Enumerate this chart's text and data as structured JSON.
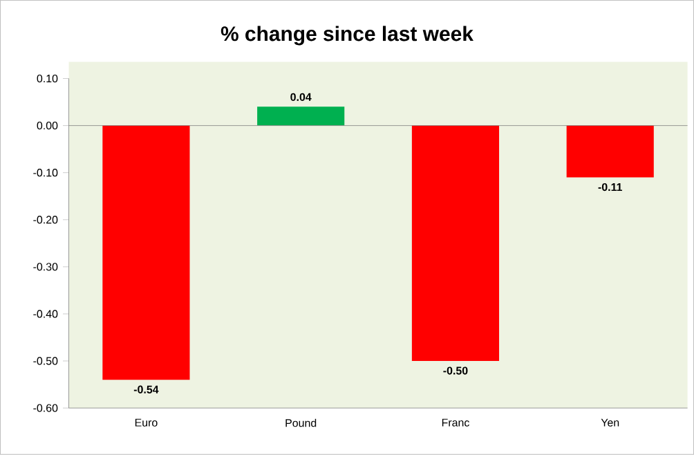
{
  "chart_data": {
    "type": "bar",
    "title": "% change since last week",
    "categories": [
      "Euro",
      "Pound",
      "Franc",
      "Yen"
    ],
    "values": [
      -0.54,
      0.04,
      -0.5,
      -0.11
    ],
    "colors": [
      "#ff0000",
      "#00b050",
      "#ff0000",
      "#ff0000"
    ],
    "value_labels": [
      "-0.54",
      "0.04",
      "-0.50",
      "-0.11"
    ],
    "ylim": [
      -0.6,
      0.1
    ],
    "yticks": [
      {
        "value": -0.6,
        "label": "-0.60"
      },
      {
        "value": -0.5,
        "label": "-0.50"
      },
      {
        "value": -0.4,
        "label": "-0.40"
      },
      {
        "value": -0.3,
        "label": "-0.30"
      },
      {
        "value": -0.2,
        "label": "-0.20"
      },
      {
        "value": -0.1,
        "label": "-0.10"
      },
      {
        "value": 0,
        "label": "0.00"
      },
      {
        "value": 0.1,
        "label": "0.10"
      }
    ],
    "ref_lines": [
      {
        "axis": "y",
        "value": 0,
        "color": "#808080"
      }
    ]
  }
}
